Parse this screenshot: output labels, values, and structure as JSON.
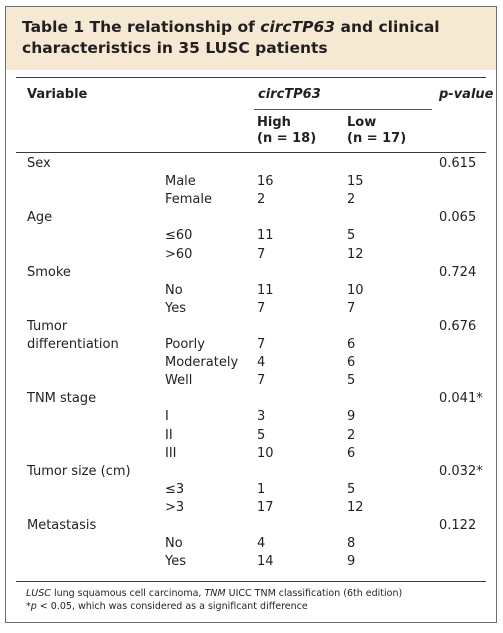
{
  "table": {
    "title_prefix": "Table 1 The relationship of ",
    "title_gene": "circTP63",
    "title_suffix": " and clinical",
    "title_line2": "characteristics in 35 LUSC patients",
    "col_variable": "Variable",
    "col_gene": "circTP63",
    "col_pvalue": "p-value",
    "col_high": "High",
    "col_high_n": "(n = 18)",
    "col_low": "Low",
    "col_low_n": "(n = 17)",
    "rows": [
      {
        "variable": "Sex",
        "sub": "",
        "high": "",
        "low": "",
        "p": "0.615"
      },
      {
        "variable": "",
        "sub": "Male",
        "high": "16",
        "low": "15",
        "p": ""
      },
      {
        "variable": "",
        "sub": "Female",
        "high": "2",
        "low": "2",
        "p": ""
      },
      {
        "variable": "Age",
        "sub": "",
        "high": "",
        "low": "",
        "p": "0.065"
      },
      {
        "variable": "",
        "sub": "≤60",
        "high": "11",
        "low": "5",
        "p": ""
      },
      {
        "variable": "",
        "sub": ">60",
        "high": "7",
        "low": "12",
        "p": ""
      },
      {
        "variable": "Smoke",
        "sub": "",
        "high": "",
        "low": "",
        "p": "0.724"
      },
      {
        "variable": "",
        "sub": "No",
        "high": "11",
        "low": "10",
        "p": ""
      },
      {
        "variable": "",
        "sub": "Yes",
        "high": "7",
        "low": "7",
        "p": ""
      },
      {
        "variable": "Tumor",
        "sub": "",
        "high": "",
        "low": "",
        "p": "0.676"
      },
      {
        "variable": "differentiation",
        "sub": "Poorly",
        "high": "7",
        "low": "6",
        "p": ""
      },
      {
        "variable": "",
        "sub": "Moderately",
        "high": "4",
        "low": "6",
        "p": ""
      },
      {
        "variable": "",
        "sub": "Well",
        "high": "7",
        "low": "5",
        "p": ""
      },
      {
        "variable": "TNM stage",
        "sub": "",
        "high": "",
        "low": "",
        "p": "0.041*"
      },
      {
        "variable": "",
        "sub": "I",
        "high": "3",
        "low": "9",
        "p": ""
      },
      {
        "variable": "",
        "sub": "II",
        "high": "5",
        "low": "2",
        "p": ""
      },
      {
        "variable": "",
        "sub": "III",
        "high": "10",
        "low": "6",
        "p": ""
      },
      {
        "variable": "Tumor size (cm)",
        "sub": "",
        "high": "",
        "low": "",
        "p": "0.032*"
      },
      {
        "variable": "",
        "sub": "≤3",
        "high": "1",
        "low": "5",
        "p": ""
      },
      {
        "variable": "",
        "sub": ">3",
        "high": "17",
        "low": "12",
        "p": ""
      },
      {
        "variable": "Metastasis",
        "sub": "",
        "high": "",
        "low": "",
        "p": "0.122"
      },
      {
        "variable": "",
        "sub": "No",
        "high": "4",
        "low": "8",
        "p": ""
      },
      {
        "variable": "",
        "sub": "Yes",
        "high": "14",
        "low": "9",
        "p": ""
      }
    ],
    "footnote1_a": "LUSC",
    "footnote1_b": " lung squamous cell carcinoma, ",
    "footnote1_c": "TNM",
    "footnote1_d": " UICC TNM classification (6th edition)",
    "footnote2_a": "*p",
    "footnote2_b": " < 0.05, which was considered as a significant difference"
  },
  "colors": {
    "title_background": "#f6e9d4",
    "text": "#231f20"
  }
}
